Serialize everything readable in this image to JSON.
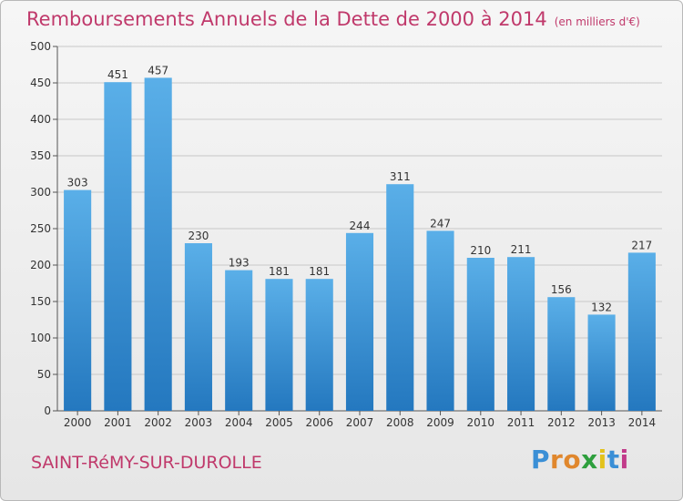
{
  "title": "Remboursements Annuels de la Dette de 2000 à 2014",
  "unit_note": "(en milliers d'€)",
  "commune": "SAINT-RéMY-SUR-DUROLLE",
  "logo": {
    "letters": [
      "P",
      "r",
      "o",
      "x",
      "i",
      "t",
      "i"
    ],
    "colors": [
      "#3a8fd6",
      "#e0872d",
      "#e0872d",
      "#2e9f3d",
      "#e3c21b",
      "#3a8fd6",
      "#c23b8a"
    ]
  },
  "colors": {
    "title": "#c0396b",
    "bar_top": "#5aafe8",
    "bar_bottom": "#2478bf",
    "grid": "#c8c8c8",
    "axis": "#555555"
  },
  "chart_data": {
    "type": "bar",
    "categories": [
      "2000",
      "2001",
      "2002",
      "2003",
      "2004",
      "2005",
      "2006",
      "2007",
      "2008",
      "2009",
      "2010",
      "2011",
      "2012",
      "2013",
      "2014"
    ],
    "values": [
      303,
      451,
      457,
      230,
      193,
      181,
      181,
      244,
      311,
      247,
      210,
      211,
      156,
      132,
      217
    ],
    "data_labels": [
      "303",
      "451",
      "457",
      "230",
      "193",
      "181",
      "181",
      "244",
      "311",
      "247",
      "210",
      "211",
      "156",
      "132",
      "217"
    ],
    "yticks": [
      "0",
      "50",
      "100",
      "150",
      "200",
      "250",
      "300",
      "350",
      "400",
      "450",
      "500"
    ],
    "ylim": [
      0,
      500
    ],
    "grid": true
  }
}
